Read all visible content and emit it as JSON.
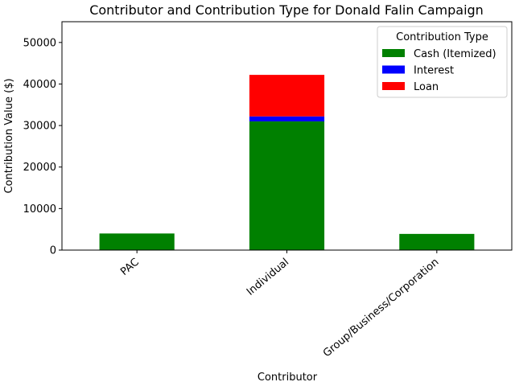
{
  "chart_data": {
    "type": "bar",
    "stacked": true,
    "title": "Contributor and Contribution Type for Donald Falin Campaign",
    "xlabel": "Contributor",
    "ylabel": "Contribution Value ($)",
    "categories": [
      "PAC",
      "Individual",
      "Group/Business/Corporation"
    ],
    "series": [
      {
        "name": "Cash (Itemized)",
        "color": "#008000",
        "values": [
          4000,
          31000,
          3900
        ]
      },
      {
        "name": "Interest",
        "color": "#0000ff",
        "values": [
          0,
          1200,
          0
        ]
      },
      {
        "name": "Loan",
        "color": "#ff0000",
        "values": [
          0,
          10000,
          0
        ]
      }
    ],
    "ylim": [
      0,
      55000
    ],
    "yticks": [
      0,
      10000,
      20000,
      30000,
      40000,
      50000
    ],
    "grid": false,
    "legend": {
      "title": "Contribution Type",
      "position": "upper right"
    }
  }
}
